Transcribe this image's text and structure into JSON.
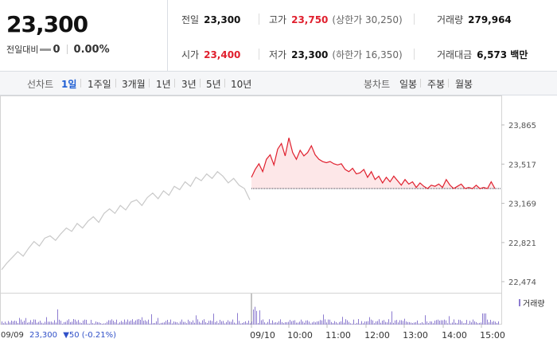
{
  "quote": {
    "price": "23,300",
    "change_label": "전일대비",
    "change_value": "0",
    "change_pct": "0.00%"
  },
  "stats": {
    "prev_close": {
      "label": "전일",
      "value": "23,300"
    },
    "high": {
      "label": "고가",
      "value": "23,750",
      "limit": "(상한가 30,250)"
    },
    "volume": {
      "label": "거래량",
      "value": "279,964"
    },
    "open": {
      "label": "시가",
      "value": "23,400"
    },
    "low": {
      "label": "저가",
      "value": "23,300",
      "limit": "(하한가 16,350)"
    },
    "amount": {
      "label": "거래대금",
      "value": "6,573 백만"
    }
  },
  "tabs": {
    "line_label": "선차트",
    "line_items": [
      "1일",
      "1주일",
      "3개월",
      "1년",
      "3년",
      "5년",
      "10년"
    ],
    "active_index": 0,
    "candle_label": "봉차트",
    "candle_items": [
      "일봉",
      "주봉",
      "월봉"
    ]
  },
  "footer": {
    "prev_date": "09/09",
    "prev_price": "23,300",
    "prev_change": "▼50 (-0.21%)"
  },
  "colors": {
    "up": "#e0202e",
    "down": "#3050c8",
    "prev_line": "#c8c8c8",
    "volume": "#8c7bd0",
    "active_tab": "#1f5fd4"
  },
  "chart_data": {
    "type": "line",
    "ylim": [
      22474,
      23865
    ],
    "yticks": [
      "23,865",
      "23,517",
      "23,169",
      "22,821",
      "22,474"
    ],
    "ytick_values": [
      23865,
      23517,
      23169,
      22821,
      22474
    ],
    "reference_price": 23300,
    "xticks": [
      "09/10",
      "10:00",
      "11:00",
      "12:00",
      "13:00",
      "14:00",
      "15:00"
    ],
    "volume_legend": "거래량",
    "series": [
      {
        "values": [
          22580,
          22640,
          22690,
          22740,
          22700,
          22770,
          22830,
          22790,
          22860,
          22880,
          22840,
          22900,
          22950,
          22920,
          22990,
          22950,
          23010,
          23050,
          23000,
          23080,
          23120,
          23080,
          23150,
          23110,
          23180,
          23200,
          23150,
          23220,
          23260,
          23210,
          23280,
          23240,
          23320,
          23290,
          23360,
          23320,
          23400,
          23370,
          23430,
          23390,
          23450,
          23410,
          23350,
          23390,
          23330,
          23300,
          23200
        ]
      },
      {
        "values": [
          23400,
          23470,
          23520,
          23450,
          23560,
          23600,
          23510,
          23650,
          23700,
          23590,
          23750,
          23620,
          23560,
          23640,
          23590,
          23620,
          23680,
          23600,
          23560,
          23540,
          23530,
          23540,
          23520,
          23510,
          23520,
          23470,
          23450,
          23480,
          23430,
          23440,
          23470,
          23400,
          23450,
          23380,
          23410,
          23350,
          23400,
          23360,
          23410,
          23370,
          23330,
          23380,
          23340,
          23360,
          23310,
          23350,
          23320,
          23300,
          23330,
          23320,
          23340,
          23310,
          23380,
          23330,
          23300,
          23320,
          23340,
          23300,
          23310,
          23300,
          23330,
          23300,
          23310,
          23300,
          23360,
          23300
        ]
      }
    ]
  }
}
